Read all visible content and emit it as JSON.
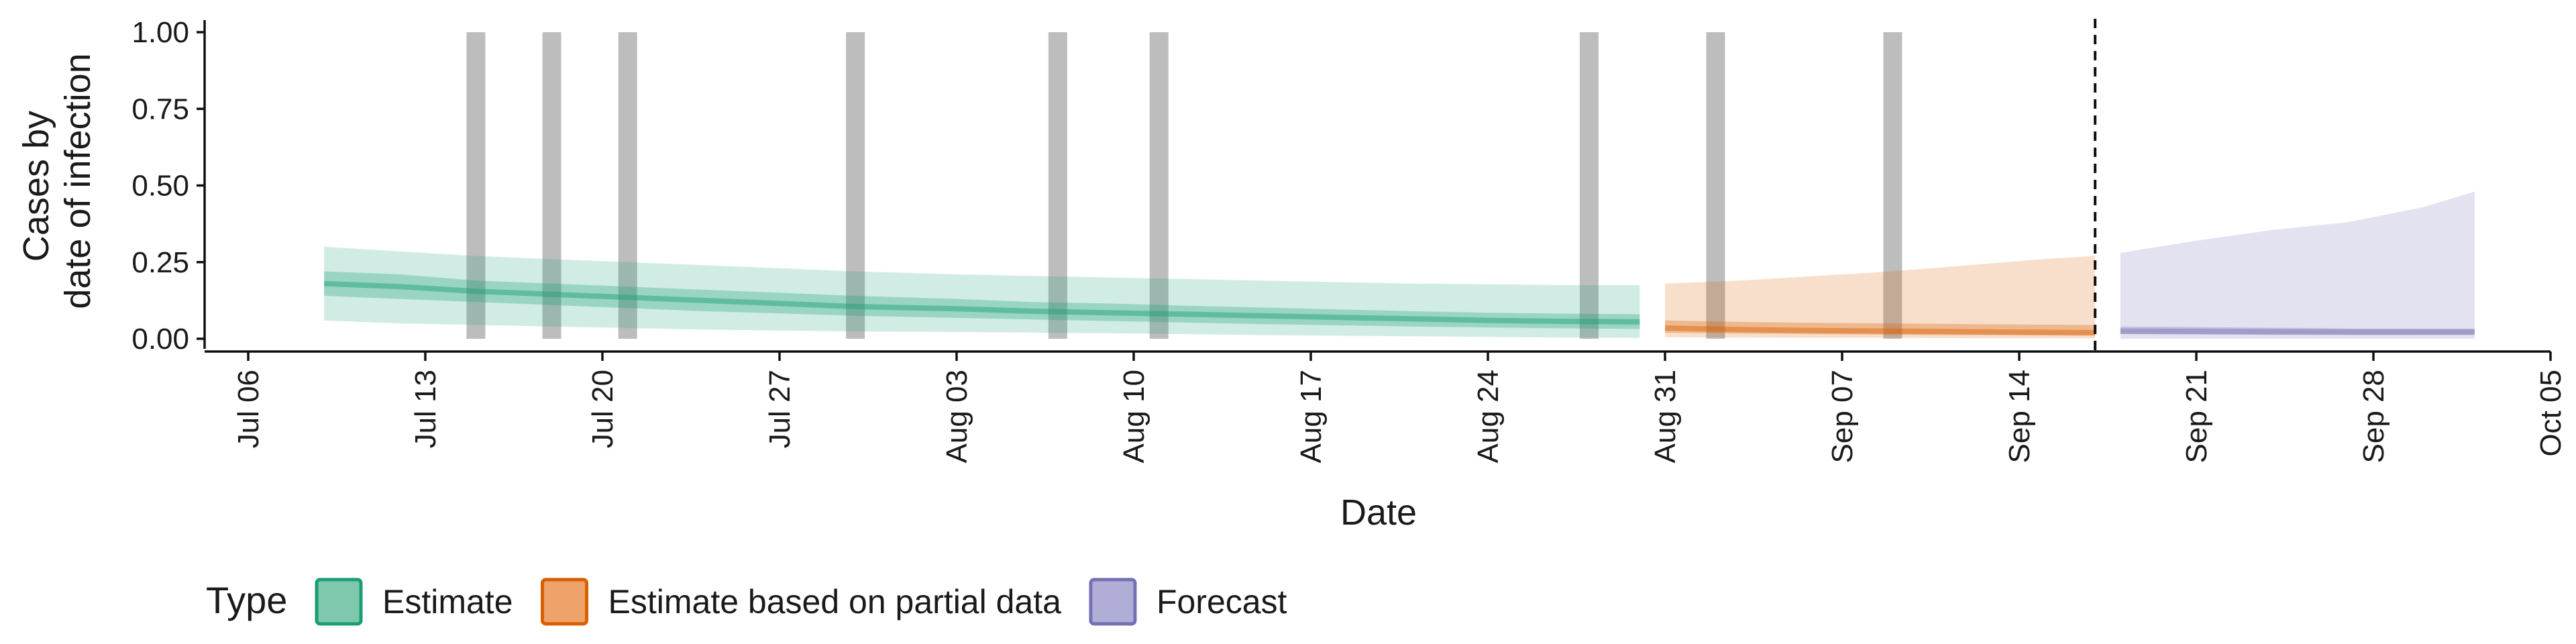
{
  "chart_data": {
    "type": "area",
    "xlabel": "Date",
    "ylabel": [
      "Cases by",
      "date of infection"
    ],
    "ylim": [
      0,
      1
    ],
    "xlim": [
      "2020-07-06",
      "2020-10-05"
    ],
    "y_ticks": [
      0,
      0.25,
      0.5,
      0.75,
      1
    ],
    "y_tick_labels": [
      "0.00",
      "0.25",
      "0.50",
      "0.75",
      "1.00"
    ],
    "x_ticks": [
      "2020-07-06",
      "2020-07-13",
      "2020-07-20",
      "2020-07-27",
      "2020-08-03",
      "2020-08-10",
      "2020-08-17",
      "2020-08-24",
      "2020-08-31",
      "2020-09-07",
      "2020-09-14",
      "2020-09-21",
      "2020-09-28",
      "2020-10-05"
    ],
    "x_tick_labels": [
      "Jul 06",
      "Jul 13",
      "Jul 20",
      "Jul 27",
      "Aug 03",
      "Aug 10",
      "Aug 17",
      "Aug 24",
      "Aug 31",
      "Sep 07",
      "Sep 14",
      "Sep 21",
      "Sep 28",
      "Oct 05"
    ],
    "grid": false,
    "legend": {
      "position": "bottom-left",
      "title": "Type",
      "entries": [
        {
          "label": "Estimate",
          "fill": "#7fc8ad",
          "stroke": "#1b9e77"
        },
        {
          "label": "Estimate based on partial data",
          "fill": "#eda36a",
          "stroke": "#d95f02"
        },
        {
          "label": "Forecast",
          "fill": "#b0aed6",
          "stroke": "#7570b3"
        }
      ]
    },
    "forecast_start": "2020-09-17",
    "highlight_dates": [
      "2020-07-15",
      "2020-07-18",
      "2020-07-21",
      "2020-07-30",
      "2020-08-07",
      "2020-08-11",
      "2020-08-28",
      "2020-09-02",
      "2020-09-09"
    ],
    "highlight_color": "#bdbdbd",
    "series": [
      {
        "name": "Estimate",
        "color": "#1b9e77",
        "x": [
          "2020-07-09",
          "2020-07-12",
          "2020-07-15",
          "2020-07-18",
          "2020-07-21",
          "2020-07-24",
          "2020-07-27",
          "2020-07-30",
          "2020-08-03",
          "2020-08-06",
          "2020-08-09",
          "2020-08-12",
          "2020-08-15",
          "2020-08-18",
          "2020-08-21",
          "2020-08-24",
          "2020-08-27",
          "2020-08-30"
        ],
        "median": [
          0.18,
          0.17,
          0.155,
          0.145,
          0.135,
          0.125,
          0.115,
          0.105,
          0.098,
          0.09,
          0.085,
          0.08,
          0.075,
          0.07,
          0.065,
          0.06,
          0.057,
          0.055
        ],
        "outer_lower": [
          0.06,
          0.05,
          0.045,
          0.04,
          0.035,
          0.03,
          0.027,
          0.024,
          0.022,
          0.02,
          0.018,
          0.015,
          0.012,
          0.01,
          0.008,
          0.006,
          0.004,
          0.003
        ],
        "outer_upper": [
          0.3,
          0.285,
          0.27,
          0.26,
          0.25,
          0.24,
          0.23,
          0.22,
          0.21,
          0.205,
          0.2,
          0.195,
          0.19,
          0.185,
          0.18,
          0.178,
          0.175,
          0.175
        ],
        "inner_lower": [
          0.14,
          0.13,
          0.12,
          0.11,
          0.1,
          0.09,
          0.083,
          0.075,
          0.068,
          0.063,
          0.058,
          0.053,
          0.048,
          0.044,
          0.04,
          0.037,
          0.034,
          0.032
        ],
        "inner_upper": [
          0.22,
          0.21,
          0.19,
          0.18,
          0.17,
          0.16,
          0.15,
          0.14,
          0.13,
          0.12,
          0.115,
          0.108,
          0.102,
          0.096,
          0.09,
          0.085,
          0.082,
          0.08
        ]
      },
      {
        "name": "Estimate based on partial data",
        "color": "#d95f02",
        "x": [
          "2020-08-31",
          "2020-09-03",
          "2020-09-06",
          "2020-09-09",
          "2020-09-12",
          "2020-09-15",
          "2020-09-17"
        ],
        "median": [
          0.035,
          0.03,
          0.027,
          0.025,
          0.023,
          0.021,
          0.02
        ],
        "outer_lower": [
          0.005,
          0.004,
          0.003,
          0.003,
          0.002,
          0.002,
          0.002
        ],
        "outer_upper": [
          0.18,
          0.19,
          0.205,
          0.22,
          0.24,
          0.26,
          0.27
        ],
        "inner_lower": [
          0.02,
          0.017,
          0.015,
          0.013,
          0.012,
          0.011,
          0.01
        ],
        "inner_upper": [
          0.06,
          0.055,
          0.052,
          0.05,
          0.048,
          0.046,
          0.045
        ]
      },
      {
        "name": "Forecast",
        "color": "#7570b3",
        "x": [
          "2020-09-18",
          "2020-09-21",
          "2020-09-24",
          "2020-09-27",
          "2020-09-30",
          "2020-10-02"
        ],
        "median": [
          0.025,
          0.024,
          0.023,
          0.022,
          0.022,
          0.022
        ],
        "outer_lower": [
          0.0,
          0.0,
          0.0,
          0.0,
          0.0,
          0.0
        ],
        "outer_upper": [
          0.28,
          0.32,
          0.355,
          0.38,
          0.43,
          0.48
        ],
        "inner_lower": [
          0.015,
          0.014,
          0.013,
          0.012,
          0.012,
          0.012
        ],
        "inner_upper": [
          0.04,
          0.038,
          0.036,
          0.034,
          0.033,
          0.033
        ]
      }
    ]
  }
}
